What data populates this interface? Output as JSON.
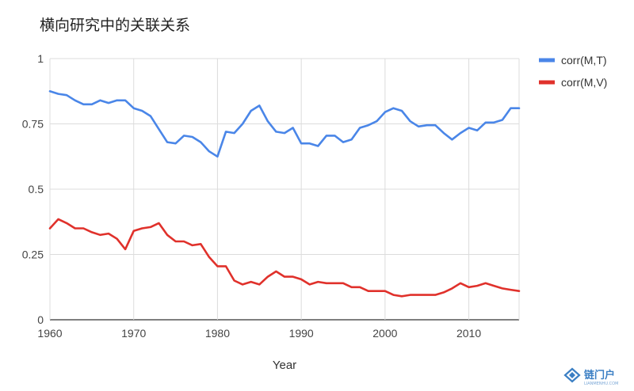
{
  "chart_data": {
    "type": "line",
    "title": "横向研究中的关联关系",
    "xlabel": "Year",
    "ylabel": "",
    "xlim": [
      1960,
      2016
    ],
    "ylim": [
      0,
      1
    ],
    "x_ticks": [
      "1960",
      "1970",
      "1980",
      "1990",
      "2000",
      "2010"
    ],
    "y_ticks": [
      "0",
      "0.25",
      "0.5",
      "0.75",
      "1"
    ],
    "grid": true,
    "legend_position": "top-right",
    "x": [
      1960,
      1961,
      1962,
      1963,
      1964,
      1965,
      1966,
      1967,
      1968,
      1969,
      1970,
      1971,
      1972,
      1973,
      1974,
      1975,
      1976,
      1977,
      1978,
      1979,
      1980,
      1981,
      1982,
      1983,
      1984,
      1985,
      1986,
      1987,
      1988,
      1989,
      1990,
      1991,
      1992,
      1993,
      1994,
      1995,
      1996,
      1997,
      1998,
      1999,
      2000,
      2001,
      2002,
      2003,
      2004,
      2005,
      2006,
      2007,
      2008,
      2009,
      2010,
      2011,
      2012,
      2013,
      2014,
      2015,
      2016
    ],
    "series": [
      {
        "name": "corr(M,T)",
        "color": "#4a86e8",
        "values": [
          0.875,
          0.865,
          0.86,
          0.84,
          0.825,
          0.825,
          0.84,
          0.83,
          0.84,
          0.84,
          0.81,
          0.8,
          0.78,
          0.73,
          0.68,
          0.675,
          0.705,
          0.7,
          0.68,
          0.645,
          0.625,
          0.72,
          0.715,
          0.75,
          0.8,
          0.82,
          0.76,
          0.72,
          0.715,
          0.735,
          0.675,
          0.675,
          0.665,
          0.705,
          0.705,
          0.68,
          0.69,
          0.735,
          0.745,
          0.76,
          0.795,
          0.81,
          0.8,
          0.76,
          0.74,
          0.745,
          0.745,
          0.715,
          0.69,
          0.715,
          0.735,
          0.725,
          0.755,
          0.755,
          0.765,
          0.81,
          0.81
        ]
      },
      {
        "name": "corr(M,V)",
        "color": "#e0312b",
        "values": [
          0.35,
          0.385,
          0.37,
          0.35,
          0.35,
          0.335,
          0.325,
          0.33,
          0.31,
          0.27,
          0.34,
          0.35,
          0.355,
          0.37,
          0.325,
          0.3,
          0.3,
          0.285,
          0.29,
          0.24,
          0.205,
          0.205,
          0.15,
          0.135,
          0.145,
          0.135,
          0.165,
          0.185,
          0.165,
          0.165,
          0.155,
          0.135,
          0.145,
          0.14,
          0.14,
          0.14,
          0.125,
          0.125,
          0.11,
          0.11,
          0.11,
          0.095,
          0.09,
          0.095,
          0.095,
          0.095,
          0.095,
          0.105,
          0.12,
          0.14,
          0.125,
          0.13,
          0.14,
          0.13,
          0.12,
          0.115,
          0.11
        ]
      }
    ]
  },
  "watermark": {
    "name": "链门户",
    "sub": "LIANMENHU.COM",
    "color": "#3b7fc4"
  }
}
